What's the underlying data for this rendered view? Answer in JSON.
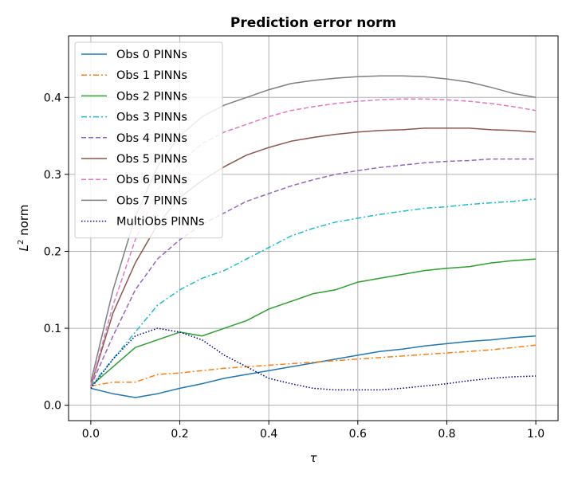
{
  "chart_data": {
    "type": "line",
    "title": "Prediction error norm",
    "xlabel": "τ",
    "ylabel_main": "L",
    "ylabel_sup": "2",
    "ylabel_rest": " norm",
    "xlim": [
      -0.05,
      1.05
    ],
    "ylim": [
      -0.02,
      0.48
    ],
    "xticks": [
      0.0,
      0.2,
      0.4,
      0.6,
      0.8,
      1.0
    ],
    "xtick_labels": [
      "0.0",
      "0.2",
      "0.4",
      "0.6",
      "0.8",
      "1.0"
    ],
    "yticks": [
      0.0,
      0.1,
      0.2,
      0.3,
      0.4
    ],
    "ytick_labels": [
      "0.0",
      "0.1",
      "0.2",
      "0.3",
      "0.4"
    ],
    "grid": true,
    "legend_position": "top-left",
    "x": [
      0.0,
      0.05,
      0.1,
      0.15,
      0.2,
      0.25,
      0.3,
      0.35,
      0.4,
      0.45,
      0.5,
      0.55,
      0.6,
      0.65,
      0.7,
      0.75,
      0.8,
      0.85,
      0.9,
      0.95,
      1.0
    ],
    "series": [
      {
        "name": "Obs 0 PINNs",
        "color": "#1f77b4",
        "dash": "solid",
        "values": [
          0.022,
          0.015,
          0.01,
          0.015,
          0.022,
          0.028,
          0.035,
          0.04,
          0.045,
          0.05,
          0.055,
          0.06,
          0.065,
          0.07,
          0.073,
          0.077,
          0.08,
          0.083,
          0.085,
          0.088,
          0.09
        ]
      },
      {
        "name": "Obs 1 PINNs",
        "color": "#ff7f0e",
        "dash": "dashdot",
        "values": [
          0.025,
          0.03,
          0.03,
          0.04,
          0.042,
          0.045,
          0.048,
          0.05,
          0.052,
          0.054,
          0.056,
          0.058,
          0.06,
          0.062,
          0.064,
          0.066,
          0.068,
          0.07,
          0.072,
          0.075,
          0.078
        ]
      },
      {
        "name": "Obs 2 PINNs",
        "color": "#2ca02c",
        "dash": "solid",
        "values": [
          0.025,
          0.05,
          0.075,
          0.085,
          0.095,
          0.09,
          0.1,
          0.11,
          0.125,
          0.135,
          0.145,
          0.15,
          0.16,
          0.165,
          0.17,
          0.175,
          0.178,
          0.18,
          0.185,
          0.188,
          0.19
        ]
      },
      {
        "name": "Obs 3 PINNs",
        "color": "#17becf",
        "dash": "dashdot",
        "values": [
          0.025,
          0.06,
          0.095,
          0.13,
          0.15,
          0.165,
          0.175,
          0.19,
          0.205,
          0.22,
          0.23,
          0.238,
          0.243,
          0.248,
          0.252,
          0.256,
          0.258,
          0.261,
          0.263,
          0.265,
          0.268
        ]
      },
      {
        "name": "Obs 4 PINNs",
        "color": "#9467bd",
        "dash": "dashed",
        "values": [
          0.025,
          0.09,
          0.15,
          0.19,
          0.215,
          0.235,
          0.25,
          0.265,
          0.275,
          0.285,
          0.293,
          0.3,
          0.305,
          0.309,
          0.312,
          0.315,
          0.317,
          0.318,
          0.32,
          0.32,
          0.32
        ]
      },
      {
        "name": "Obs 5 PINNs",
        "color": "#8c564b",
        "dash": "solid",
        "values": [
          0.025,
          0.12,
          0.185,
          0.235,
          0.27,
          0.292,
          0.31,
          0.325,
          0.335,
          0.343,
          0.348,
          0.352,
          0.355,
          0.357,
          0.358,
          0.36,
          0.36,
          0.36,
          0.358,
          0.357,
          0.355
        ]
      },
      {
        "name": "Obs 6 PINNs",
        "color": "#e377c2",
        "dash": "dashed",
        "values": [
          0.025,
          0.13,
          0.215,
          0.28,
          0.315,
          0.34,
          0.355,
          0.365,
          0.375,
          0.383,
          0.388,
          0.392,
          0.395,
          0.397,
          0.398,
          0.398,
          0.397,
          0.395,
          0.392,
          0.388,
          0.383
        ]
      },
      {
        "name": "Obs 7 PINNs",
        "color": "#7f7f7f",
        "dash": "solid",
        "values": [
          0.03,
          0.15,
          0.245,
          0.31,
          0.35,
          0.375,
          0.39,
          0.4,
          0.41,
          0.418,
          0.422,
          0.425,
          0.427,
          0.428,
          0.428,
          0.427,
          0.424,
          0.42,
          0.413,
          0.405,
          0.4
        ]
      },
      {
        "name": "MultiObs PINNs",
        "color": "#00008b",
        "dash": "dotted",
        "values": [
          0.022,
          0.06,
          0.09,
          0.1,
          0.095,
          0.085,
          0.065,
          0.05,
          0.035,
          0.028,
          0.022,
          0.02,
          0.02,
          0.02,
          0.022,
          0.025,
          0.028,
          0.032,
          0.035,
          0.037,
          0.038
        ]
      }
    ]
  }
}
